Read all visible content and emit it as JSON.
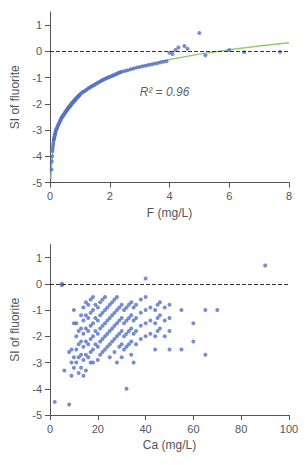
{
  "chart_data": [
    {
      "type": "scatter",
      "xlabel": "F (mg/L)",
      "ylabel": "SI of fluorite",
      "xlim": [
        0,
        8
      ],
      "ylim": [
        -5,
        1.5
      ],
      "xticks": [
        0,
        2,
        4,
        6,
        8
      ],
      "yticks": [
        -5,
        -4,
        -3,
        -2,
        -1,
        0,
        1
      ],
      "grid": false,
      "series": [
        {
          "type": "scatter",
          "marker": "circle",
          "x": [
            0.05,
            0.06,
            0.07,
            0.08,
            0.09,
            0.1,
            0.11,
            0.12,
            0.13,
            0.14,
            0.15,
            0.16,
            0.17,
            0.18,
            0.19,
            0.2,
            0.22,
            0.24,
            0.26,
            0.28,
            0.3,
            0.32,
            0.34,
            0.36,
            0.38,
            0.4,
            0.42,
            0.44,
            0.46,
            0.48,
            0.5,
            0.52,
            0.54,
            0.56,
            0.58,
            0.6,
            0.62,
            0.64,
            0.66,
            0.68,
            0.7,
            0.72,
            0.74,
            0.76,
            0.78,
            0.8,
            0.82,
            0.84,
            0.86,
            0.88,
            0.9,
            0.92,
            0.94,
            0.96,
            0.98,
            1.0,
            1.05,
            1.1,
            1.15,
            1.2,
            1.25,
            1.3,
            1.35,
            1.4,
            1.45,
            1.5,
            1.55,
            1.6,
            1.65,
            1.7,
            1.75,
            1.8,
            1.85,
            1.9,
            1.95,
            2.0,
            2.05,
            2.1,
            2.15,
            2.2,
            2.25,
            2.3,
            2.35,
            2.4,
            2.5,
            2.6,
            2.7,
            2.8,
            2.9,
            3.0,
            3.1,
            3.2,
            3.3,
            3.4,
            3.5,
            3.6,
            3.7,
            3.8,
            3.9,
            4.0,
            4.1,
            4.2,
            4.3,
            4.5,
            4.6,
            5.0,
            5.2,
            6.0,
            6.5,
            7.7
          ],
          "values": [
            -4.5,
            -4.2,
            -4.0,
            -3.8,
            -3.7,
            -3.6,
            -3.5,
            -3.4,
            -3.35,
            -3.3,
            -3.25,
            -3.2,
            -3.15,
            -3.1,
            -3.05,
            -3.0,
            -2.95,
            -2.9,
            -2.85,
            -2.8,
            -2.75,
            -2.7,
            -2.65,
            -2.6,
            -2.55,
            -2.5,
            -2.48,
            -2.45,
            -2.42,
            -2.38,
            -2.35,
            -2.3,
            -2.28,
            -2.25,
            -2.22,
            -2.18,
            -2.15,
            -2.12,
            -2.1,
            -2.08,
            -2.05,
            -2.0,
            -1.98,
            -1.95,
            -1.93,
            -1.9,
            -1.88,
            -1.85,
            -1.83,
            -1.8,
            -1.78,
            -1.75,
            -1.73,
            -1.7,
            -1.68,
            -1.65,
            -1.6,
            -1.55,
            -1.52,
            -1.48,
            -1.44,
            -1.4,
            -1.37,
            -1.33,
            -1.3,
            -1.27,
            -1.23,
            -1.2,
            -1.17,
            -1.13,
            -1.1,
            -1.07,
            -1.05,
            -1.02,
            -1.0,
            -0.97,
            -0.95,
            -0.92,
            -0.9,
            -0.87,
            -0.85,
            -0.82,
            -0.8,
            -0.78,
            -0.75,
            -0.72,
            -0.68,
            -0.65,
            -0.62,
            -0.6,
            -0.57,
            -0.55,
            -0.52,
            -0.5,
            -0.47,
            -0.45,
            -0.42,
            -0.4,
            -0.38,
            -0.05,
            -0.1,
            0.05,
            0.15,
            0.2,
            0.1,
            0.7,
            -0.15,
            0.05,
            -0.03,
            -0.02
          ]
        },
        {
          "type": "line",
          "line_style": "solid",
          "x": [
            0.03,
            0.04,
            0.05,
            0.07,
            0.1,
            0.15,
            0.2,
            0.3,
            0.4,
            0.6,
            0.8,
            1,
            1.5,
            2,
            3,
            4,
            5,
            6,
            7,
            8
          ],
          "values": [
            -4.867,
            -4.6,
            -4.392,
            -4.079,
            -3.747,
            -3.369,
            -3.102,
            -2.724,
            -2.457,
            -2.079,
            -1.812,
            -1.604,
            -1.226,
            -0.959,
            -0.581,
            -0.314,
            -0.106,
            0.064,
            0.207,
            0.331
          ]
        }
      ],
      "reference_lines": [
        {
          "y": 0,
          "line_style": "dashed"
        }
      ],
      "annotations": [
        {
          "text": "R² = 0.96",
          "x": 3.0,
          "y": -1.55
        }
      ]
    },
    {
      "type": "scatter",
      "xlabel": "Ca (mg/L)",
      "ylabel": "SI of fluorite",
      "xlim": [
        0,
        100
      ],
      "ylim": [
        -5,
        1.5
      ],
      "xticks": [
        0,
        20,
        40,
        60,
        80,
        100
      ],
      "yticks": [
        -5,
        -4,
        -3,
        -2,
        -1,
        0,
        1
      ],
      "grid": false,
      "series": [
        {
          "type": "scatter",
          "marker": "circle",
          "x": [
            2,
            5,
            5,
            6,
            8,
            8,
            9,
            9,
            9,
            10,
            10,
            10,
            10,
            11,
            11,
            11,
            11,
            12,
            12,
            12,
            12,
            13,
            13,
            13,
            13,
            13,
            14,
            14,
            14,
            14,
            14,
            14,
            15,
            15,
            15,
            15,
            15,
            15,
            16,
            16,
            16,
            16,
            16,
            17,
            17,
            17,
            17,
            17,
            17,
            18,
            18,
            18,
            18,
            18,
            18,
            19,
            19,
            19,
            19,
            20,
            20,
            20,
            20,
            20,
            21,
            21,
            21,
            21,
            21,
            22,
            22,
            22,
            22,
            22,
            23,
            23,
            23,
            23,
            23,
            24,
            24,
            24,
            24,
            25,
            25,
            25,
            25,
            25,
            26,
            26,
            26,
            26,
            27,
            27,
            27,
            27,
            27,
            28,
            28,
            28,
            28,
            28,
            29,
            29,
            29,
            29,
            30,
            30,
            30,
            30,
            30,
            31,
            31,
            31,
            31,
            32,
            32,
            32,
            32,
            32,
            33,
            33,
            33,
            33,
            34,
            34,
            34,
            34,
            34,
            35,
            35,
            35,
            35,
            36,
            36,
            36,
            36,
            38,
            38,
            38,
            38,
            40,
            40,
            40,
            40,
            40,
            42,
            42,
            42,
            44,
            44,
            44,
            44,
            45,
            45,
            45,
            46,
            46,
            46,
            48,
            48,
            48,
            50,
            50,
            50,
            50,
            55,
            55,
            60,
            60,
            65,
            65,
            70,
            90
          ],
          "values": [
            -4.5,
            -0.05,
            0.0,
            -3.3,
            -2.6,
            -4.6,
            -2.5,
            -3.0,
            -3.5,
            -2.8,
            -1.5,
            -1.0,
            -3.2,
            -2.0,
            -2.5,
            -3.0,
            -1.5,
            -1.8,
            -2.3,
            -2.8,
            -3.4,
            -1.2,
            -1.7,
            -2.2,
            -2.7,
            -3.2,
            -0.9,
            -1.4,
            -1.9,
            -2.4,
            -2.9,
            -3.5,
            -0.7,
            -1.2,
            -1.7,
            -2.2,
            -2.7,
            -3.3,
            -0.8,
            -1.3,
            -1.8,
            -2.3,
            -2.8,
            -0.6,
            -1.1,
            -1.6,
            -2.1,
            -2.6,
            -3.0,
            -0.5,
            -1.0,
            -1.5,
            -2.0,
            -2.5,
            -3.0,
            -0.8,
            -1.3,
            -1.8,
            -2.3,
            -0.9,
            -1.4,
            -1.9,
            -2.4,
            -2.9,
            -0.7,
            -1.2,
            -1.7,
            -2.2,
            -2.7,
            -0.6,
            -1.1,
            -1.6,
            -2.1,
            -2.6,
            -0.5,
            -1.0,
            -1.5,
            -2.0,
            -2.5,
            -0.9,
            -1.4,
            -1.9,
            -2.4,
            -0.8,
            -1.3,
            -1.8,
            -2.3,
            -2.8,
            -0.7,
            -1.2,
            -1.7,
            -2.2,
            -0.6,
            -1.1,
            -1.6,
            -2.1,
            -2.6,
            -0.5,
            -1.0,
            -1.5,
            -2.0,
            -3.0,
            -0.9,
            -1.4,
            -1.9,
            -2.4,
            -0.8,
            -1.3,
            -1.8,
            -2.3,
            -2.8,
            -1.0,
            -1.5,
            -2.0,
            -2.5,
            -0.9,
            -1.4,
            -1.9,
            -2.4,
            -4.0,
            -0.8,
            -1.3,
            -1.8,
            -2.3,
            -0.7,
            -1.2,
            -1.7,
            -2.2,
            -2.7,
            -0.9,
            -1.4,
            -1.9,
            -3.0,
            -0.8,
            -1.3,
            -1.8,
            -2.3,
            -0.6,
            -1.1,
            -1.6,
            -2.1,
            0.2,
            -0.5,
            -1.0,
            -1.5,
            -2.0,
            -0.9,
            -1.4,
            -1.9,
            -1.0,
            -1.5,
            -2.0,
            -2.5,
            -0.8,
            -1.3,
            -1.8,
            -0.7,
            -1.2,
            -1.7,
            -0.9,
            -1.4,
            -2.0,
            -0.8,
            -1.3,
            -1.8,
            -2.5,
            -2.5,
            -1.0,
            -2.2,
            -1.5,
            -1.0,
            -2.7,
            -1.0,
            0.7
          ]
        }
      ],
      "reference_lines": [
        {
          "y": 0,
          "line_style": "dashed"
        }
      ]
    }
  ]
}
